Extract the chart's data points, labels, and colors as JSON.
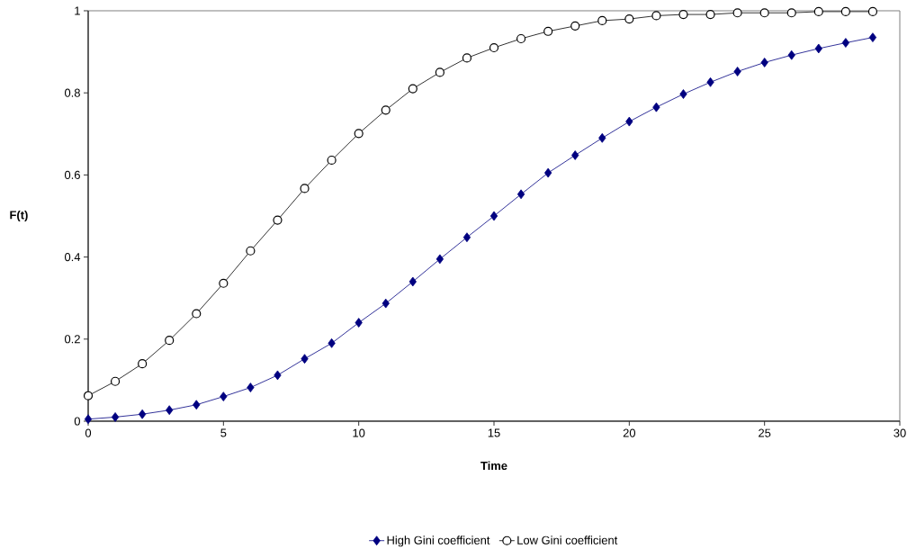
{
  "chart_data": {
    "type": "line",
    "xlabel": "Time",
    "ylabel": "F(t)",
    "x": [
      0,
      1,
      2,
      3,
      4,
      5,
      6,
      7,
      8,
      9,
      10,
      11,
      12,
      13,
      14,
      15,
      16,
      17,
      18,
      19,
      20,
      21,
      22,
      23,
      24,
      25,
      26,
      27,
      28,
      29
    ],
    "series": [
      {
        "name": "High Gini coefficient",
        "color": "#000080",
        "marker": "diamond",
        "values": [
          0.005,
          0.01,
          0.017,
          0.027,
          0.04,
          0.06,
          0.082,
          0.112,
          0.152,
          0.19,
          0.24,
          0.287,
          0.34,
          0.395,
          0.448,
          0.5,
          0.553,
          0.605,
          0.648,
          0.69,
          0.73,
          0.765,
          0.797,
          0.826,
          0.852,
          0.874,
          0.892,
          0.908,
          0.922,
          0.935
        ]
      },
      {
        "name": "Low  Gini coefficient",
        "color": "#000000",
        "marker": "circle",
        "values": [
          0.062,
          0.097,
          0.14,
          0.197,
          0.262,
          0.336,
          0.415,
          0.49,
          0.567,
          0.636,
          0.701,
          0.758,
          0.81,
          0.85,
          0.885,
          0.91,
          0.932,
          0.95,
          0.963,
          0.976,
          0.98,
          0.988,
          0.991,
          0.991,
          0.995,
          0.995,
          0.995,
          0.998,
          0.998,
          0.998
        ]
      }
    ],
    "xlim": [
      0,
      30
    ],
    "xticks": [
      0,
      5,
      10,
      15,
      20,
      25,
      30
    ],
    "ylim": [
      0,
      1
    ],
    "yticks": [
      0,
      {
        "value": 0.2,
        "label": "0.2"
      },
      {
        "value": 0.4,
        "label": "0.4"
      },
      {
        "value": 0.6,
        "label": "0.6"
      },
      {
        "value": 0.8,
        "label": "0.8"
      },
      1
    ],
    "grid": false,
    "legend": "bottom",
    "line_style": "solid"
  }
}
